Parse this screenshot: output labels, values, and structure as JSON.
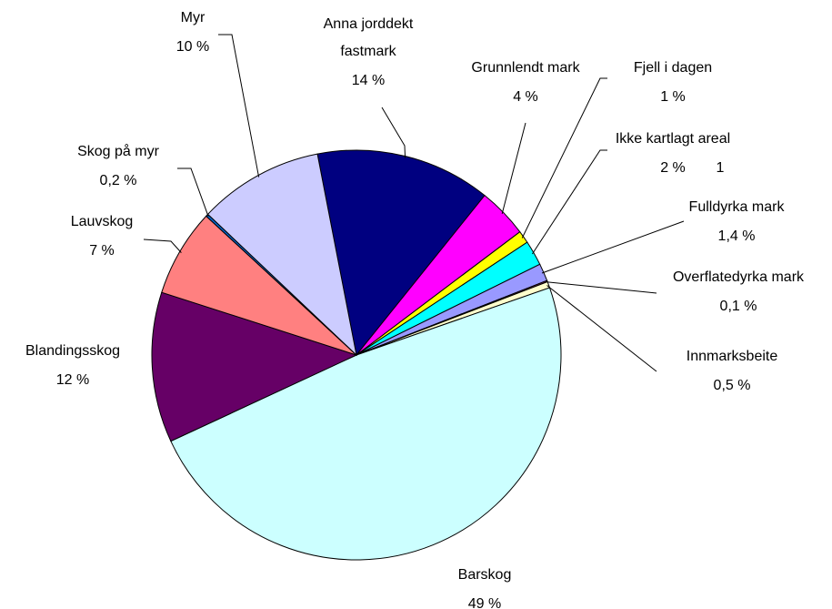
{
  "chart_data": {
    "type": "pie",
    "categories": [
      "Anna jorddekt fastmark",
      "Grunnlendt mark",
      "Fjell i dagen",
      "Ikke kartlagt areal",
      "Fulldyrka mark",
      "Overflatedyrka mark",
      "Innmarksbeite",
      "Barskog",
      "Blandingsskog",
      "Lauvskog",
      "Skog på myr",
      "Myr"
    ],
    "values": [
      14,
      4,
      1,
      2,
      1.4,
      0.1,
      0.5,
      49,
      12,
      7,
      0.2,
      10
    ],
    "value_labels": [
      "14 %",
      "4 %",
      "1 %",
      "2 %",
      "1,4 %",
      "0,1 %",
      "0,5 %",
      "49 %",
      "12 %",
      "7 %",
      "0,2 %",
      "10 %"
    ],
    "colors": [
      "#000080",
      "#ff00ff",
      "#ffff00",
      "#00ffff",
      "#9999ff",
      "#993366",
      "#ffffcc",
      "#ccffff",
      "#660066",
      "#ff8080",
      "#0066cc",
      "#ccccff"
    ],
    "annotations": [
      "1"
    ]
  }
}
